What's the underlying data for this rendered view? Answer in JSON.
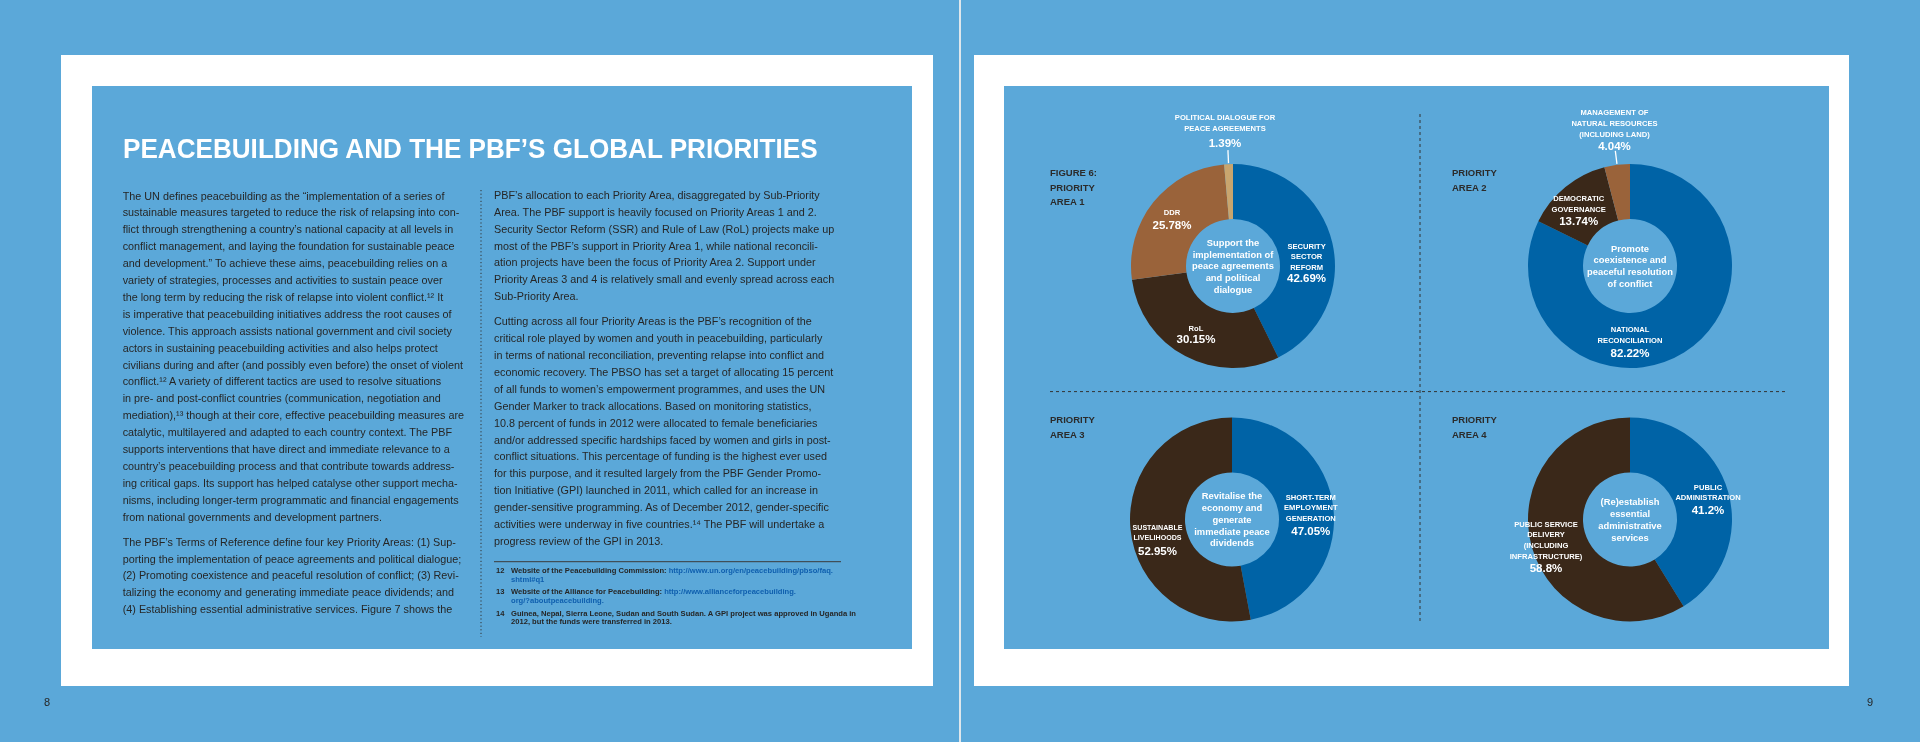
{
  "chart_data": [
    {
      "type": "other",
      "title": "PEACEBUILDING AND THE PBF’S GLOBAL PRIORITIES",
      "annotations": [
        "The UN defines peacebuilding as the “implementation of a series of\nsustainable measures targeted to reduce the risk of relapsing into con-\nflict through strengthening a country’s national capacity at all levels in\nconflict management, and laying the foundation for sustainable peace\nand development.” To achieve these aims, peacebuilding relies on a\nvariety of strategies, processes and activities to sustain peace over\nthe long term by reducing the risk of relapse into violent conflict.¹² It\nis imperative that peacebuilding initiatives address the root causes of\nviolence. This approach assists national government and civil society\nactors in sustaining peacebuilding activities and also helps protect\ncivilians during and after (and possibly even before) the onset of violent\nconflict.¹² A variety of different tactics are used to resolve situations\nin pre- and post-conflict countries (communication, negotiation and\nmediation),¹³ though at their core, effective peacebuilding measures are\ncatalytic, multilayered and adapted to each country context. The PBF\nsupports interventions that have direct and immediate relevance to a\ncountry’s peacebuilding process and that contribute towards address-\ning critical gaps. Its support has helped catalyse other support mecha-\nnisms, including longer-term programmatic and financial engagements\nfrom national governments and development partners.",
        "The PBF’s Terms of Reference define four key Priority Areas: (1) Sup-\nporting the implementation of peace agreements and political dialogue;\n(2) Promoting coexistence and peaceful resolution of conflict; (3) Revi-\ntalizing the economy and generating immediate peace dividends; and\n(4) Establishing essential administrative services. Figure 7 shows the",
        "PBF’s allocation to each Priority Area, disaggregated by Sub-Priority\nArea. The PBF support is heavily focused on Priority Areas 1 and 2.\nSecurity Sector Reform (SSR) and Rule of Law (RoL) projects make up\nmost of the PBF’s support in Priority Area 1, while national reconcili-\nation projects have been the focus of Priority Area 2. Support under\nPriority Areas 3 and 4 is relatively small and evenly spread across each\nSub-Priority Area.",
        "Cutting across all four Priority Areas is the PBF’s recognition of the\ncritical role played by women and youth in peacebuilding, particularly\nin terms of national reconciliation, preventing relapse into conflict and\neconomic recovery. The PBSO has set a target of allocating 15 percent\nof all funds to women’s empowerment programmes, and uses the UN\nGender Marker to track allocations. Based on monitoring statistics,\n10.8 percent of funds in 2012 were allocated to female beneficiaries\nand/or addressed specific hardships faced by women and girls in post-\nconflict situations. This percentage of funding is the highest ever used\nfor this purpose, and it resulted largely from the PBF Gender Promo-\ntion Initiative (GPI) launched in 2011, which called for an increase in\ngender-sensitive programming. As of December 2012, gender-specific\nactivities were underway in five countries.¹⁴ The PBF will undertake a\nprogress review of the GPI in 2013.",
        "12 Website of the Peacebuilding Commission: http://www.un.org/en/peacebuilding/pbso/faq.\nshtml#q1",
        "13 Website of the Alliance for Peacebuilding: http://www.allianceforpeacebuilding.\norg/?aboutpeacebuilding.",
        "14 Guinea, Nepal, Sierra Leone, Sudan and South Sudan. A GPI project was approved in Uganda in\n2012, but the funds were transferred in 2013.",
        "8",
        "9"
      ]
    },
    {
      "type": "donut",
      "title": "FIGURE 6:\nPRIORITY\nAREA 1",
      "categories": [
        "SECURITY\nSECTOR\nREFORM",
        "RoL",
        "DDR",
        "POLITICAL DIALOGUE FOR\nPEACE AGREEMENTS"
      ],
      "values": [
        42.69,
        30.15,
        25.78,
        1.39
      ],
      "colors": [
        "#0063a6",
        "#3a2819",
        "#9a633a",
        "#c9a56e"
      ],
      "value_labels": [
        "42.69%",
        "30.15%",
        "25.78%",
        "1.39%"
      ],
      "annotations": [
        "Support the\nimplementation of\npeace agreements\nand political\ndialogue"
      ]
    },
    {
      "type": "donut",
      "title": "PRIORITY\nAREA 2",
      "categories": [
        "NATIONAL\nRECONCILIATION",
        "DEMOCRATIC\nGOVERNANCE",
        "MANAGEMENT OF\nNATURAL RESOURCES\n(INCLUDING LAND)"
      ],
      "values": [
        82.22,
        13.74,
        4.04
      ],
      "colors": [
        "#0063a6",
        "#3a2819",
        "#9a633a"
      ],
      "value_labels": [
        "82.22%",
        "13.74%",
        "4.04%"
      ],
      "annotations": [
        "Promote\ncoexistence and\npeaceful resolution\nof conflict"
      ]
    },
    {
      "type": "donut",
      "title": "PRIORITY\nAREA 3",
      "categories": [
        "SHORT-TERM\nEMPLOYMENT\nGENERATION",
        "SUSTAINABLE\nLIVELIHOODS"
      ],
      "values": [
        47.05,
        52.95
      ],
      "colors": [
        "#0063a6",
        "#3a2819"
      ],
      "value_labels": [
        "47.05%",
        "52.95%"
      ],
      "annotations": [
        "Revitalise the\neconomy and\ngenerate\nimmediate peace\ndividends"
      ]
    },
    {
      "type": "donut",
      "title": "PRIORITY\nAREA 4",
      "categories": [
        "PUBLIC\nADMINISTRATION",
        "PUBLIC SERVICE\nDELIVERY\n(INCLUDING\nINFRASTRUCTURE)"
      ],
      "values": [
        41.2,
        58.8
      ],
      "colors": [
        "#0063a6",
        "#3a2819"
      ],
      "value_labels": [
        "41.2%",
        "58.8%"
      ],
      "annotations": [
        "(Re)establish\nessential\nadministrative\nservices"
      ]
    }
  ]
}
